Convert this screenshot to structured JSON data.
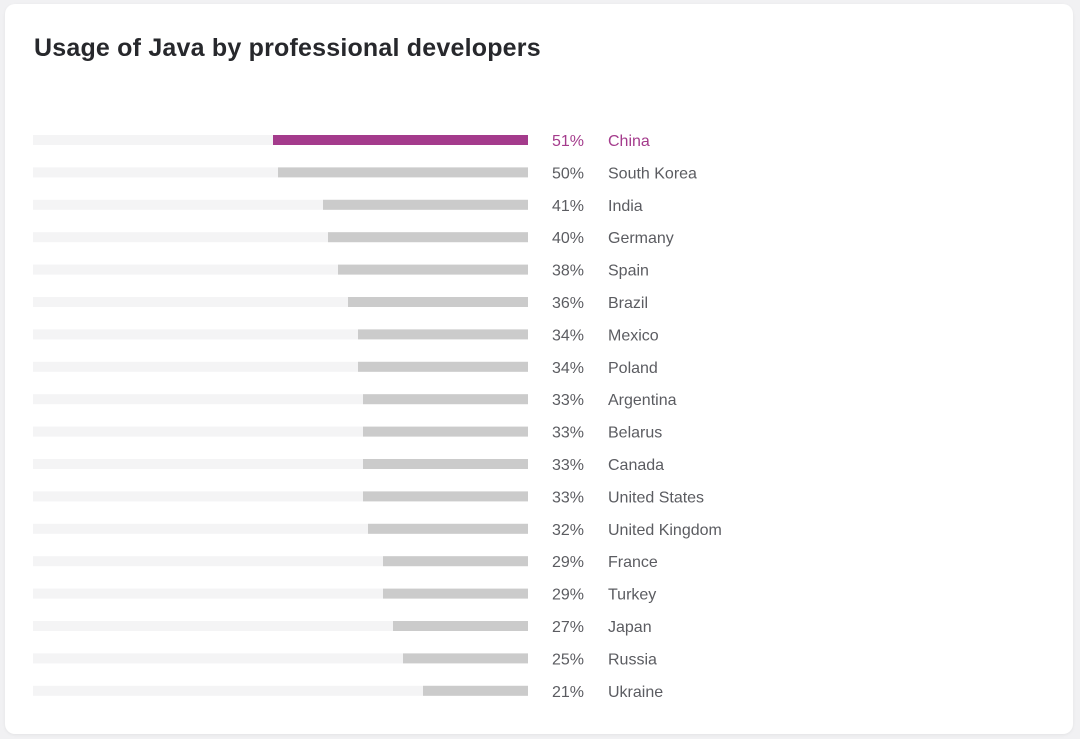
{
  "title": "Usage of Java by professional developers",
  "colors": {
    "highlight": "#a43b8c",
    "bar": "#cbcbcb",
    "track": "#f4f4f5",
    "text": "#5b5c61"
  },
  "chart_data": {
    "type": "bar",
    "orientation": "horizontal",
    "title": "Usage of Java by professional developers",
    "unit": "%",
    "xlim": [
      0,
      100
    ],
    "grid": false,
    "legend": "none",
    "highlight_index": 0,
    "categories": [
      "China",
      "South Korea",
      "India",
      "Germany",
      "Spain",
      "Brazil",
      "Mexico",
      "Poland",
      "Argentina",
      "Belarus",
      "Canada",
      "United States",
      "United Kingdom",
      "France",
      "Turkey",
      "Japan",
      "Russia",
      "Ukraine"
    ],
    "values": [
      51,
      50,
      41,
      40,
      38,
      36,
      34,
      34,
      33,
      33,
      33,
      33,
      32,
      29,
      29,
      27,
      25,
      21
    ],
    "value_labels": [
      "51%",
      "50%",
      "41%",
      "40%",
      "38%",
      "36%",
      "34%",
      "34%",
      "33%",
      "33%",
      "33%",
      "33%",
      "32%",
      "29%",
      "29%",
      "27%",
      "25%",
      "21%"
    ]
  }
}
